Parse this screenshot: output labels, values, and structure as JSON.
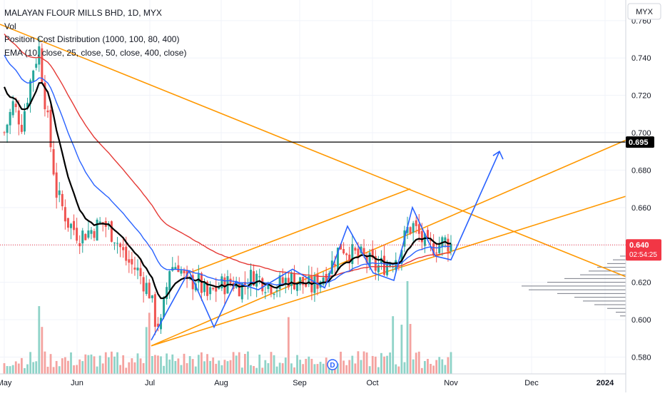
{
  "header": {
    "title": "MALAYAN FLOUR MILLS BHD, 1D, MYX",
    "indicators": [
      "Vol",
      "Position Cost Distribution (1000, 100, 80, 400)",
      "EMA (10, close, 25, close, 50, close, 400, close)"
    ]
  },
  "currency_button": "MYX",
  "colors": {
    "up": "#26a69a",
    "down": "#ef5350",
    "vol_up": "#8fd3c8",
    "vol_down": "#f4a3a0",
    "ema10": "#000000",
    "ema25": "#2962ff",
    "ema50": "#e53935",
    "trendline": "#ff9800",
    "pattern": "#2962ff",
    "price_badge": "#f23645"
  },
  "chart_data": {
    "type": "candlestick",
    "y_axis": {
      "ylim": [
        0.571,
        0.771
      ],
      "ticks": [
        "0.760",
        "0.740",
        "0.720",
        "0.700",
        "0.680",
        "0.660",
        "0.640",
        "0.620",
        "0.600",
        "0.580"
      ]
    },
    "x_axis": {
      "labels": [
        "May",
        "Jun",
        "Jul",
        "Aug",
        "Sep",
        "Oct",
        "Nov",
        "Dec",
        "2024"
      ]
    },
    "current_price": {
      "value": "0.640",
      "countdown": "02:54:25"
    },
    "horizontal_line": {
      "value": "0.695"
    },
    "pattern_note": "ascending channel with zigzag wave and projected breakout arrow toward 0.695"
  },
  "events": {
    "dividend_marker": "D"
  }
}
